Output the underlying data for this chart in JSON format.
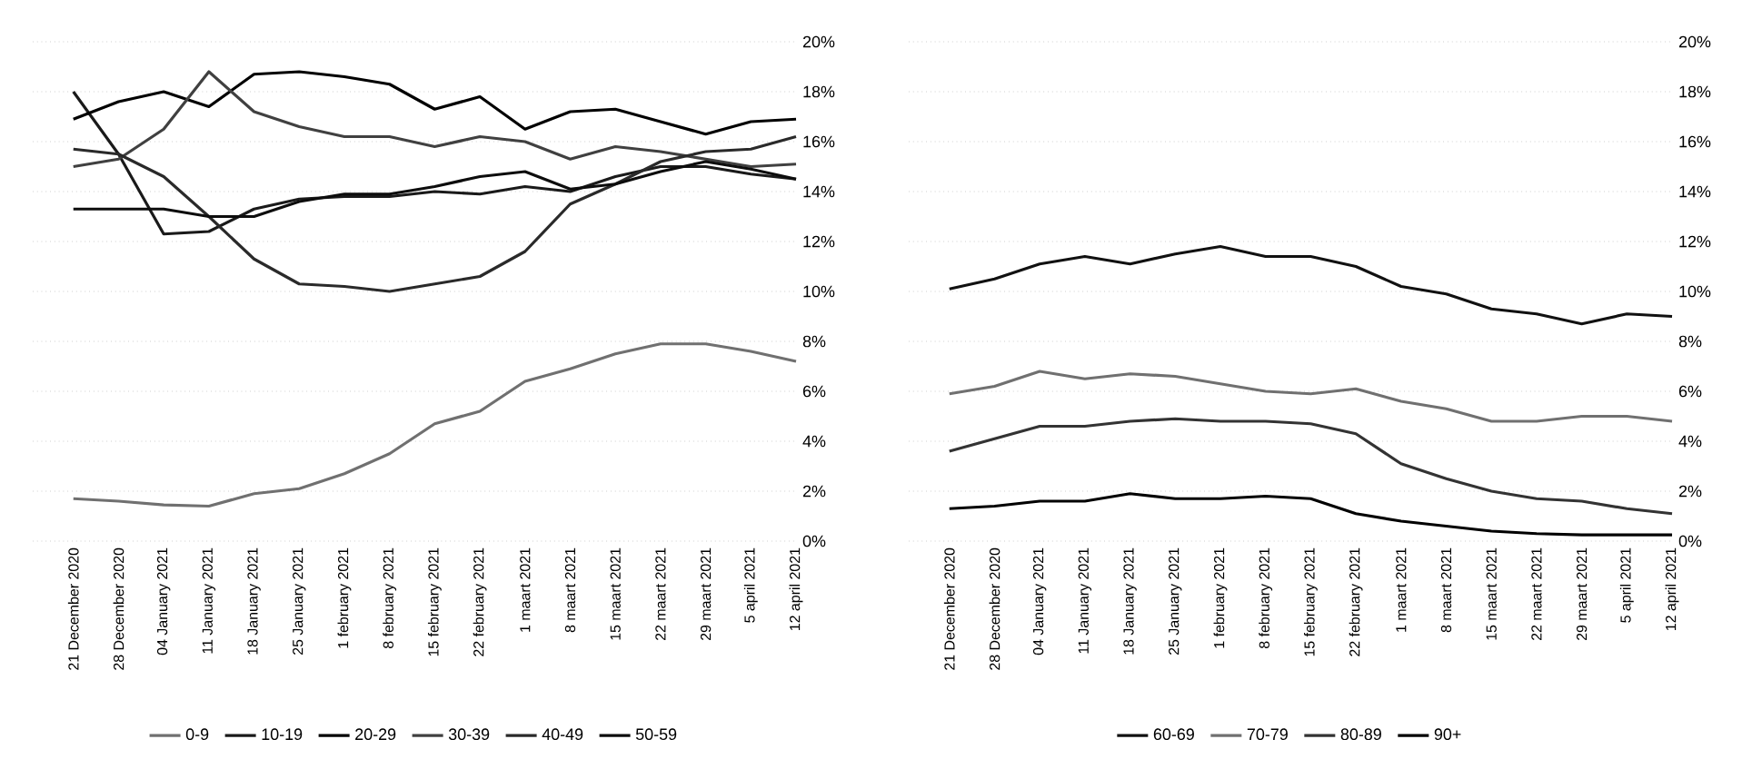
{
  "chart_data": [
    {
      "type": "line",
      "categories": [
        "21 December 2020",
        "28 December 2020",
        "04 January 2021",
        "11 January 2021",
        "18 January 2021",
        "25 January 2021",
        "1 february 2021",
        "8 february 2021",
        "15 february 2021",
        "22 february 2021",
        "1 maart 2021",
        "8 maart 2021",
        "15 maart 2021",
        "22 maart 2021",
        "29 maart 2021",
        "5 april 2021",
        "12 april 2021"
      ],
      "series": [
        {
          "name": "0-9",
          "color": "#707070",
          "values": [
            1.7,
            1.6,
            1.45,
            1.4,
            1.9,
            2.1,
            2.7,
            3.5,
            4.7,
            5.2,
            6.4,
            6.9,
            7.5,
            7.9,
            7.9,
            7.6,
            7.2
          ]
        },
        {
          "name": "10-19",
          "color": "#1a1a1a",
          "values": [
            18.0,
            15.5,
            12.3,
            12.4,
            13.3,
            13.7,
            13.8,
            13.8,
            14.0,
            13.9,
            14.2,
            14.0,
            14.6,
            15.0,
            15.0,
            14.7,
            14.5
          ]
        },
        {
          "name": "20-29",
          "color": "#000000",
          "values": [
            16.9,
            17.6,
            18.0,
            17.4,
            18.7,
            18.8,
            18.6,
            18.3,
            17.3,
            17.8,
            16.5,
            17.2,
            17.3,
            16.8,
            16.3,
            16.8,
            16.9
          ]
        },
        {
          "name": "30-39",
          "color": "#404040",
          "values": [
            15.0,
            15.3,
            16.5,
            18.8,
            17.2,
            16.6,
            16.2,
            16.2,
            15.8,
            16.2,
            16.0,
            15.3,
            15.8,
            15.6,
            15.3,
            15.0,
            15.1
          ]
        },
        {
          "name": "40-49",
          "color": "#2a2a2a",
          "values": [
            15.7,
            15.5,
            14.6,
            13.0,
            11.3,
            10.3,
            10.2,
            10.0,
            10.3,
            10.6,
            11.6,
            13.5,
            14.3,
            15.2,
            15.6,
            15.7,
            16.2
          ]
        },
        {
          "name": "50-59",
          "color": "#0d0d0d",
          "values": [
            13.3,
            13.3,
            13.3,
            13.0,
            13.0,
            13.6,
            13.9,
            13.9,
            14.2,
            14.6,
            14.8,
            14.1,
            14.3,
            14.8,
            15.2,
            14.9,
            14.5
          ]
        }
      ],
      "ylim": [
        0,
        20
      ],
      "yticks": [
        {
          "value": 0,
          "label": "0%"
        },
        {
          "value": 2,
          "label": "2%"
        },
        {
          "value": 4,
          "label": "4%"
        },
        {
          "value": 6,
          "label": "6%"
        },
        {
          "value": 8,
          "label": "8%"
        },
        {
          "value": 10,
          "label": "10%"
        },
        {
          "value": 12,
          "label": "12%"
        },
        {
          "value": 14,
          "label": "14%"
        },
        {
          "value": 16,
          "label": "16%"
        },
        {
          "value": 18,
          "label": "18%"
        },
        {
          "value": 20,
          "label": "20%"
        }
      ],
      "grid": "y",
      "legend": "bottom",
      "marker": "none",
      "line_style": "solid"
    },
    {
      "type": "line",
      "categories": [
        "21 December 2020",
        "28 December 2020",
        "04 January 2021",
        "11 January 2021",
        "18 January 2021",
        "25 January 2021",
        "1 february 2021",
        "8 february 2021",
        "15 february 2021",
        "22 february 2021",
        "1 maart 2021",
        "8 maart 2021",
        "15 maart 2021",
        "22 maart 2021",
        "29 maart 2021",
        "5 april 2021",
        "12 april 2021"
      ],
      "series": [
        {
          "name": "60-69",
          "color": "#111111",
          "values": [
            10.1,
            10.5,
            11.1,
            11.4,
            11.1,
            11.5,
            11.8,
            11.4,
            11.4,
            11.0,
            10.2,
            9.9,
            9.3,
            9.1,
            8.7,
            9.1,
            9.0
          ]
        },
        {
          "name": "70-79",
          "color": "#707070",
          "values": [
            5.9,
            6.2,
            6.8,
            6.5,
            6.7,
            6.6,
            6.3,
            6.0,
            5.9,
            6.1,
            5.6,
            5.3,
            4.8,
            4.8,
            5.0,
            5.0,
            4.8
          ]
        },
        {
          "name": "80-89",
          "color": "#333333",
          "values": [
            3.6,
            4.1,
            4.6,
            4.6,
            4.8,
            4.9,
            4.8,
            4.8,
            4.7,
            4.3,
            3.1,
            2.5,
            2.0,
            1.7,
            1.6,
            1.3,
            1.1
          ]
        },
        {
          "name": "90+",
          "color": "#000000",
          "values": [
            1.3,
            1.4,
            1.6,
            1.6,
            1.9,
            1.7,
            1.7,
            1.8,
            1.7,
            1.1,
            0.8,
            0.6,
            0.4,
            0.3,
            0.25,
            0.25,
            0.25
          ]
        }
      ],
      "ylim": [
        0,
        20
      ],
      "yticks": [
        {
          "value": 0,
          "label": "0%"
        },
        {
          "value": 2,
          "label": "2%"
        },
        {
          "value": 4,
          "label": "4%"
        },
        {
          "value": 6,
          "label": "6%"
        },
        {
          "value": 8,
          "label": "8%"
        },
        {
          "value": 10,
          "label": "10%"
        },
        {
          "value": 12,
          "label": "12%"
        },
        {
          "value": 14,
          "label": "14%"
        },
        {
          "value": 16,
          "label": "16%"
        },
        {
          "value": 18,
          "label": "18%"
        },
        {
          "value": 20,
          "label": "20%"
        }
      ],
      "grid": "y",
      "legend": "bottom",
      "marker": "none",
      "line_style": "solid"
    }
  ]
}
